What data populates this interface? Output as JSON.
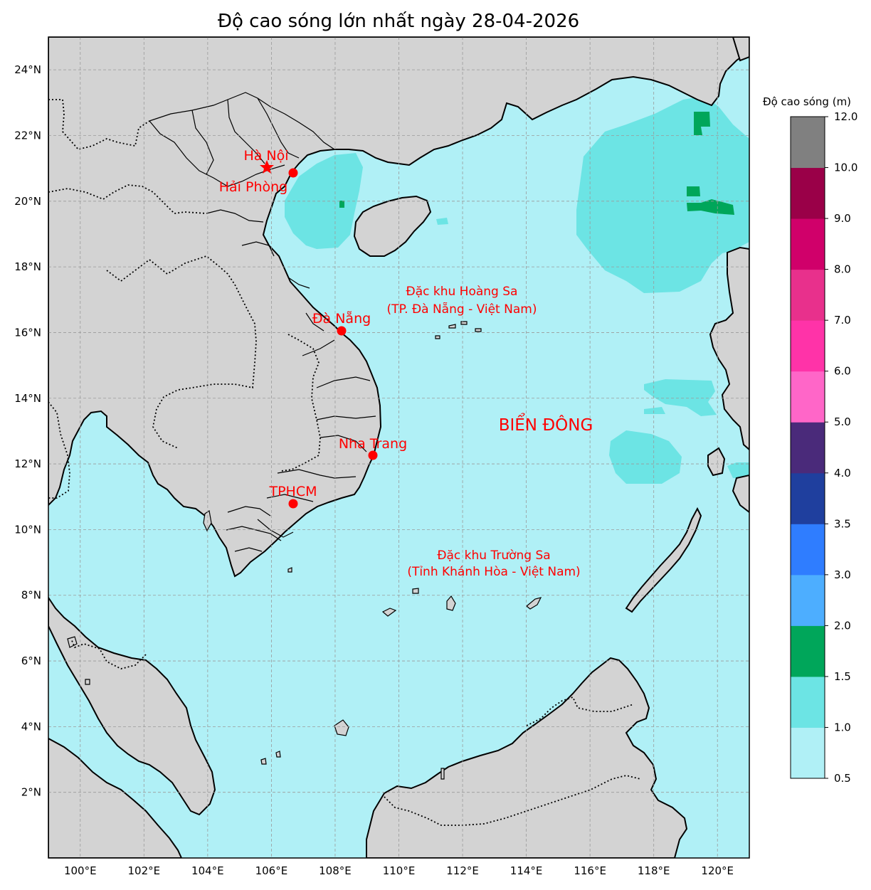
{
  "title": "Độ cao sóng lớn nhất ngày 28-04-2026",
  "map": {
    "lon_ticks": [
      "100°E",
      "102°E",
      "104°E",
      "106°E",
      "108°E",
      "110°E",
      "112°E",
      "114°E",
      "116°E",
      "118°E",
      "120°E"
    ],
    "lat_ticks": [
      "24°N",
      "22°N",
      "20°N",
      "18°N",
      "16°N",
      "14°N",
      "12°N",
      "10°N",
      "8°N",
      "6°N",
      "4°N",
      "2°N"
    ],
    "extent": {
      "lon_min": 99,
      "lon_max": 121,
      "lat_min": 0,
      "lat_max": 25
    },
    "ocean_color": "#b0f0f6",
    "land_color": "#d3d3d3",
    "gridlines": true
  },
  "places": {
    "hanoi": {
      "name": "Hà Nội",
      "lon": 105.85,
      "lat": 21.03,
      "marker": "star"
    },
    "haiphong": {
      "name": "Hải Phòng",
      "lon": 106.68,
      "lat": 20.86,
      "marker": "dot"
    },
    "danang": {
      "name": "Đà Nẵng",
      "lon": 108.21,
      "lat": 16.05,
      "marker": "dot"
    },
    "nhatrang": {
      "name": "Nha Trang",
      "lon": 109.19,
      "lat": 12.24,
      "marker": "dot"
    },
    "tphcm": {
      "name": "TPHCM",
      "lon": 106.66,
      "lat": 10.78,
      "marker": "dot"
    }
  },
  "labels": {
    "hoangsa_line1": "Đặc khu Hoàng Sa",
    "hoangsa_line2": "(TP. Đà Nẵng - Việt Nam)",
    "truongsa_line1": "Đặc khu Trường Sa",
    "truongsa_line2": "(Tỉnh Khánh Hòa - Việt Nam)",
    "sea": "BIỂN ĐÔNG"
  },
  "colorbar": {
    "label": "Độ cao sóng (m)",
    "ticks": [
      "12.0",
      "10.0",
      "9.0",
      "8.0",
      "7.0",
      "6.0",
      "5.0",
      "4.0",
      "3.5",
      "3.0",
      "2.0",
      "1.5",
      "1.0",
      "0.5"
    ],
    "bins": [
      {
        "from": 0.5,
        "to": 1.0,
        "color": "#b0f0f6"
      },
      {
        "from": 1.0,
        "to": 1.5,
        "color": "#6ce4e4"
      },
      {
        "from": 1.5,
        "to": 2.0,
        "color": "#00a65a"
      },
      {
        "from": 2.0,
        "to": 3.0,
        "color": "#4daeff"
      },
      {
        "from": 3.0,
        "to": 3.5,
        "color": "#2f7dff"
      },
      {
        "from": 3.5,
        "to": 4.0,
        "color": "#1f3f9e"
      },
      {
        "from": 4.0,
        "to": 5.0,
        "color": "#4a2a7a"
      },
      {
        "from": 5.0,
        "to": 6.0,
        "color": "#ff66c8"
      },
      {
        "from": 6.0,
        "to": 7.0,
        "color": "#ff33a8"
      },
      {
        "from": 7.0,
        "to": 8.0,
        "color": "#e8308c"
      },
      {
        "from": 8.0,
        "to": 9.0,
        "color": "#d0006a"
      },
      {
        "from": 9.0,
        "to": 10.0,
        "color": "#9a0048"
      },
      {
        "from": 10.0,
        "to": 12.0,
        "color": "#808080"
      }
    ]
  }
}
